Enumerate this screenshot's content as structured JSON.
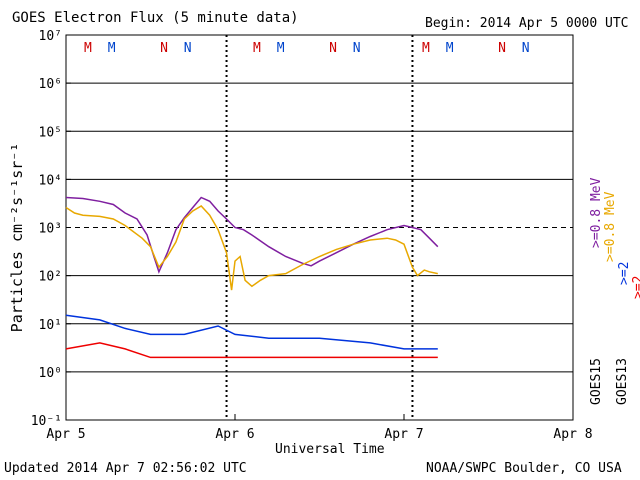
{
  "chart_data": {
    "type": "line",
    "title": "GOES Electron Flux (5 minute data)",
    "begin_label": "Begin: 2014 Apr 5 0000 UTC",
    "ylabel": "Particles cm⁻²s⁻¹sr⁻¹",
    "xlabel": "Universal Time",
    "x_ticks": [
      "Apr 5",
      "Apr 6",
      "Apr 7",
      "Apr 8"
    ],
    "x_range_days": [
      0,
      3
    ],
    "y_scale": "log",
    "ylim": [
      0.1,
      10000000
    ],
    "y_tick_labels": [
      "10⁻¹",
      "10⁰",
      "10¹",
      "10²",
      "10³",
      "10⁴",
      "10⁵",
      "10⁶",
      "10⁷"
    ],
    "threshold_line": 1000,
    "grid": true,
    "markers": [
      {
        "label": "M",
        "series": "GOES13",
        "color": "#cc0000",
        "day": 0.13
      },
      {
        "label": "M",
        "series": "GOES15",
        "color": "#0044cc",
        "day": 0.27
      },
      {
        "label": "N",
        "series": "GOES13",
        "color": "#cc0000",
        "day": 0.58
      },
      {
        "label": "N",
        "series": "GOES15",
        "color": "#0044cc",
        "day": 0.72
      },
      {
        "label": "M",
        "series": "GOES13",
        "color": "#cc0000",
        "day": 1.13
      },
      {
        "label": "M",
        "series": "GOES15",
        "color": "#0044cc",
        "day": 1.27
      },
      {
        "label": "N",
        "series": "GOES13",
        "color": "#cc0000",
        "day": 1.58
      },
      {
        "label": "N",
        "series": "GOES15",
        "color": "#0044cc",
        "day": 1.72
      },
      {
        "label": "M",
        "series": "GOES13",
        "color": "#cc0000",
        "day": 2.13
      },
      {
        "label": "M",
        "series": "GOES15",
        "color": "#0044cc",
        "day": 2.27
      },
      {
        "label": "N",
        "series": "GOES13",
        "color": "#cc0000",
        "day": 2.58
      },
      {
        "label": "N",
        "series": "GOES15",
        "color": "#0044cc",
        "day": 2.72
      }
    ],
    "day_boundaries": [
      0.95,
      2.05
    ],
    "legend": [
      {
        "label": ">=0.8 MeV",
        "color": "#7f1fa0"
      },
      {
        "label": ">=0.8 MeV",
        "color": "#e8a800"
      },
      {
        "label": ">=2",
        "color": "#0033dd"
      },
      {
        "label": ">=2",
        "color": "#ee0000"
      },
      {
        "label": "GOES15",
        "color": "#000000"
      },
      {
        "label": "GOES13",
        "color": "#000000"
      }
    ],
    "series": [
      {
        "name": "GOES15 >=0.8 MeV",
        "color": "#7f1fa0",
        "points": [
          [
            0,
            4200
          ],
          [
            0.1,
            4000
          ],
          [
            0.2,
            3500
          ],
          [
            0.28,
            3000
          ],
          [
            0.35,
            2000
          ],
          [
            0.42,
            1500
          ],
          [
            0.48,
            700
          ],
          [
            0.52,
            250
          ],
          [
            0.55,
            120
          ],
          [
            0.6,
            300
          ],
          [
            0.65,
            900
          ],
          [
            0.7,
            1600
          ],
          [
            0.75,
            2600
          ],
          [
            0.8,
            4200
          ],
          [
            0.85,
            3500
          ],
          [
            0.9,
            2200
          ],
          [
            0.95,
            1500
          ],
          [
            1.0,
            1000
          ],
          [
            1.05,
            900
          ],
          [
            1.1,
            700
          ],
          [
            1.2,
            400
          ],
          [
            1.3,
            250
          ],
          [
            1.4,
            180
          ],
          [
            1.45,
            160
          ],
          [
            1.5,
            200
          ],
          [
            1.6,
            300
          ],
          [
            1.7,
            450
          ],
          [
            1.8,
            650
          ],
          [
            1.9,
            900
          ],
          [
            2.0,
            1100
          ],
          [
            2.05,
            1000
          ],
          [
            2.1,
            900
          ],
          [
            2.15,
            600
          ],
          [
            2.2,
            400
          ]
        ]
      },
      {
        "name": "GOES13 >=0.8 MeV",
        "color": "#e8a800",
        "points": [
          [
            0,
            2600
          ],
          [
            0.05,
            2000
          ],
          [
            0.1,
            1800
          ],
          [
            0.2,
            1700
          ],
          [
            0.28,
            1500
          ],
          [
            0.35,
            1100
          ],
          [
            0.45,
            600
          ],
          [
            0.5,
            400
          ],
          [
            0.55,
            150
          ],
          [
            0.6,
            250
          ],
          [
            0.65,
            500
          ],
          [
            0.7,
            1500
          ],
          [
            0.75,
            2200
          ],
          [
            0.8,
            2800
          ],
          [
            0.85,
            1800
          ],
          [
            0.9,
            900
          ],
          [
            0.95,
            300
          ],
          [
            0.98,
            50
          ],
          [
            1.0,
            200
          ],
          [
            1.03,
            250
          ],
          [
            1.06,
            80
          ],
          [
            1.1,
            60
          ],
          [
            1.15,
            80
          ],
          [
            1.2,
            100
          ],
          [
            1.3,
            110
          ],
          [
            1.4,
            170
          ],
          [
            1.5,
            250
          ],
          [
            1.6,
            350
          ],
          [
            1.7,
            450
          ],
          [
            1.8,
            550
          ],
          [
            1.9,
            600
          ],
          [
            1.95,
            550
          ],
          [
            2.0,
            450
          ],
          [
            2.05,
            150
          ],
          [
            2.08,
            100
          ],
          [
            2.12,
            130
          ],
          [
            2.15,
            120
          ],
          [
            2.2,
            110
          ]
        ]
      },
      {
        "name": "GOES15 >=2",
        "color": "#0033dd",
        "points": [
          [
            0,
            15
          ],
          [
            0.2,
            12
          ],
          [
            0.35,
            8
          ],
          [
            0.5,
            6
          ],
          [
            0.7,
            6
          ],
          [
            0.9,
            9
          ],
          [
            1.0,
            6
          ],
          [
            1.2,
            5
          ],
          [
            1.5,
            5
          ],
          [
            1.8,
            4
          ],
          [
            2.0,
            3
          ],
          [
            2.15,
            3
          ],
          [
            2.2,
            3
          ]
        ]
      },
      {
        "name": "GOES13 >=2",
        "color": "#ee0000",
        "points": [
          [
            0,
            3
          ],
          [
            0.2,
            4
          ],
          [
            0.35,
            3
          ],
          [
            0.5,
            2
          ],
          [
            0.7,
            2
          ],
          [
            0.9,
            2
          ],
          [
            1.2,
            2
          ],
          [
            1.5,
            2
          ],
          [
            1.8,
            2
          ],
          [
            2.0,
            2
          ],
          [
            2.2,
            2
          ]
        ]
      }
    ]
  },
  "footer": {
    "updated": "Updated 2014 Apr  7 02:56:02 UTC",
    "source": "NOAA/SWPC Boulder, CO USA"
  }
}
